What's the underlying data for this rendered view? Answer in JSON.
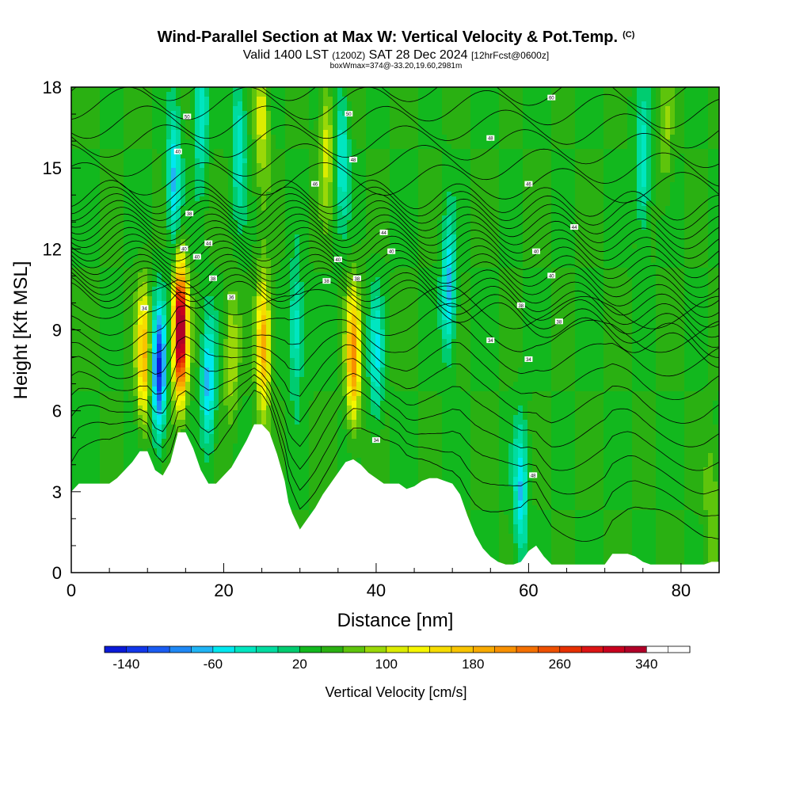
{
  "header": {
    "title": "Wind-Parallel Section at Max W: Vertical Velocity & Pot.Temp.",
    "copyright_mark": "(C)",
    "valid_prefix": "Valid 1400 LST",
    "valid_utc": "(1200Z)",
    "valid_date": "SAT 28 Dec 2024",
    "forecast_info": "[12hrFcst@0600z]",
    "box_info": "boxWmax=374@-33.20,19.60,2981m"
  },
  "chart_data": {
    "type": "heatmap",
    "xlabel": "Distance [nm]",
    "ylabel": "Height [Kft MSL]",
    "xlim": [
      0,
      85
    ],
    "ylim": [
      0,
      18
    ],
    "x_ticks": [
      0,
      20,
      40,
      60,
      80
    ],
    "y_ticks": [
      0,
      3,
      6,
      9,
      12,
      15,
      18
    ],
    "colorbar": {
      "label": "Vertical Velocity [cm/s]",
      "min": -160,
      "max": 380,
      "step": 20,
      "tick_values": [
        -140,
        -60,
        20,
        100,
        180,
        260,
        340
      ],
      "colors": [
        "#0a1ad8",
        "#1237ea",
        "#1a5cf2",
        "#1f88f5",
        "#20b4f5",
        "#00e8f0",
        "#00e6c0",
        "#00dca0",
        "#00cc70",
        "#12b81e",
        "#2ab012",
        "#5ec40c",
        "#9ad808",
        "#dcec00",
        "#f6f600",
        "#f6dc00",
        "#f8c400",
        "#f8aa00",
        "#f89000",
        "#f47000",
        "#ee5000",
        "#e63000",
        "#dc1414",
        "#c8001e",
        "#b00028"
      ]
    },
    "terrain_profile": {
      "x": [
        0,
        1,
        5,
        6,
        7,
        8,
        9,
        10,
        11,
        12,
        13,
        14,
        15,
        16,
        17,
        18,
        19,
        20,
        21,
        22,
        23,
        24,
        25,
        26,
        27,
        28,
        28.5,
        29,
        29.5,
        30,
        31,
        32,
        33,
        34,
        35,
        36,
        37,
        38,
        39,
        40,
        41,
        42,
        43,
        44,
        45,
        46,
        47,
        48,
        49,
        50,
        51,
        52,
        53,
        54,
        55,
        56,
        57,
        58,
        59,
        60,
        61,
        62,
        63,
        64,
        65,
        66,
        67,
        68,
        69,
        70,
        71,
        72,
        73,
        74,
        75,
        76,
        77,
        78,
        79,
        80,
        81,
        82,
        83,
        84,
        85
      ],
      "height": [
        3.0,
        3.3,
        3.3,
        3.5,
        3.8,
        4.1,
        4.5,
        4.5,
        3.8,
        3.6,
        4.1,
        5.2,
        5.2,
        4.6,
        3.8,
        3.3,
        3.3,
        3.6,
        3.9,
        4.4,
        4.9,
        5.5,
        5.5,
        5.2,
        4.4,
        3.4,
        2.6,
        2.2,
        1.9,
        1.6,
        2.0,
        2.4,
        2.9,
        3.3,
        3.7,
        4.1,
        4.2,
        4.0,
        3.7,
        3.5,
        3.3,
        3.3,
        3.3,
        3.1,
        3.2,
        3.4,
        3.5,
        3.5,
        3.4,
        3.3,
        2.9,
        2.1,
        1.4,
        0.9,
        0.6,
        0.4,
        0.3,
        0.3,
        0.4,
        0.8,
        1.0,
        0.6,
        0.3,
        0.3,
        0.3,
        0.3,
        0.3,
        0.3,
        0.3,
        0.3,
        0.7,
        0.7,
        0.7,
        0.6,
        0.4,
        0.3,
        0.3,
        0.3,
        0.3,
        0.3,
        0.3,
        0.3,
        0.3,
        0.4,
        0.4
      ]
    },
    "vertical_velocity_features": [
      {
        "x": 9.5,
        "height": 8.0,
        "peak": 180
      },
      {
        "x": 11.5,
        "height": 7.5,
        "peak": -140
      },
      {
        "x": 14.3,
        "height": 9.0,
        "peak": 374
      },
      {
        "x": 18.0,
        "height": 7.0,
        "peak": -70
      },
      {
        "x": 21.0,
        "height": 8.0,
        "peak": 100
      },
      {
        "x": 25.2,
        "height": 8.5,
        "peak": 200
      },
      {
        "x": 29.5,
        "height": 9.0,
        "peak": -40
      },
      {
        "x": 37.0,
        "height": 8.0,
        "peak": 210
      },
      {
        "x": 40.0,
        "height": 8.0,
        "peak": -40
      },
      {
        "x": 13.5,
        "height": 14.5,
        "peak": -70
      },
      {
        "x": 17.0,
        "height": 17.0,
        "peak": -40
      },
      {
        "x": 22.0,
        "height": 16.0,
        "peak": -40
      },
      {
        "x": 25.0,
        "height": 17.0,
        "peak": 120
      },
      {
        "x": 27.5,
        "height": 17.0,
        "peak": 40
      },
      {
        "x": 33.5,
        "height": 16.0,
        "peak": 110
      },
      {
        "x": 35.5,
        "height": 15.5,
        "peak": -40
      },
      {
        "x": 49.5,
        "height": 10.5,
        "peak": -70
      },
      {
        "x": 59.0,
        "height": 3.0,
        "peak": -60
      },
      {
        "x": 75.0,
        "height": 15.0,
        "peak": -40
      },
      {
        "x": 78.0,
        "height": 16.0,
        "peak": 80
      },
      {
        "x": 84.0,
        "height": 2.5,
        "peak": 80
      }
    ],
    "contour_labels": [
      {
        "text": "50",
        "x": 15.2,
        "height": 16.9
      },
      {
        "text": "40",
        "x": 14.0,
        "height": 15.6
      },
      {
        "text": "50",
        "x": 36.4,
        "height": 17.0
      },
      {
        "text": "48",
        "x": 37.0,
        "height": 15.3
      },
      {
        "text": "46",
        "x": 32.0,
        "height": 14.4
      },
      {
        "text": "60",
        "x": 63.0,
        "height": 17.6
      },
      {
        "text": "48",
        "x": 55.0,
        "height": 16.1
      },
      {
        "text": "46",
        "x": 60.0,
        "height": 14.4
      },
      {
        "text": "44",
        "x": 66.0,
        "height": 12.8
      },
      {
        "text": "40",
        "x": 61.0,
        "height": 11.9
      },
      {
        "text": "40",
        "x": 63.0,
        "height": 11.0
      },
      {
        "text": "38",
        "x": 59.0,
        "height": 9.9
      },
      {
        "text": "38",
        "x": 64.0,
        "height": 9.3
      },
      {
        "text": "34",
        "x": 55.0,
        "height": 8.6
      },
      {
        "text": "34",
        "x": 60.0,
        "height": 7.9
      },
      {
        "text": "38",
        "x": 15.5,
        "height": 13.3
      },
      {
        "text": "44",
        "x": 18.0,
        "height": 12.2
      },
      {
        "text": "40",
        "x": 14.8,
        "height": 12.0
      },
      {
        "text": "40",
        "x": 16.5,
        "height": 11.7
      },
      {
        "text": "38",
        "x": 18.6,
        "height": 10.9
      },
      {
        "text": "36",
        "x": 21.0,
        "height": 10.2
      },
      {
        "text": "44",
        "x": 41.0,
        "height": 12.6
      },
      {
        "text": "40",
        "x": 42.0,
        "height": 11.9
      },
      {
        "text": "40",
        "x": 35.0,
        "height": 11.6
      },
      {
        "text": "38",
        "x": 33.5,
        "height": 10.8
      },
      {
        "text": "38",
        "x": 37.5,
        "height": 10.9
      },
      {
        "text": "34",
        "x": 9.6,
        "height": 9.8
      },
      {
        "text": "34",
        "x": 40.0,
        "height": 4.9
      },
      {
        "text": "48",
        "x": 60.6,
        "height": 3.6
      }
    ]
  }
}
